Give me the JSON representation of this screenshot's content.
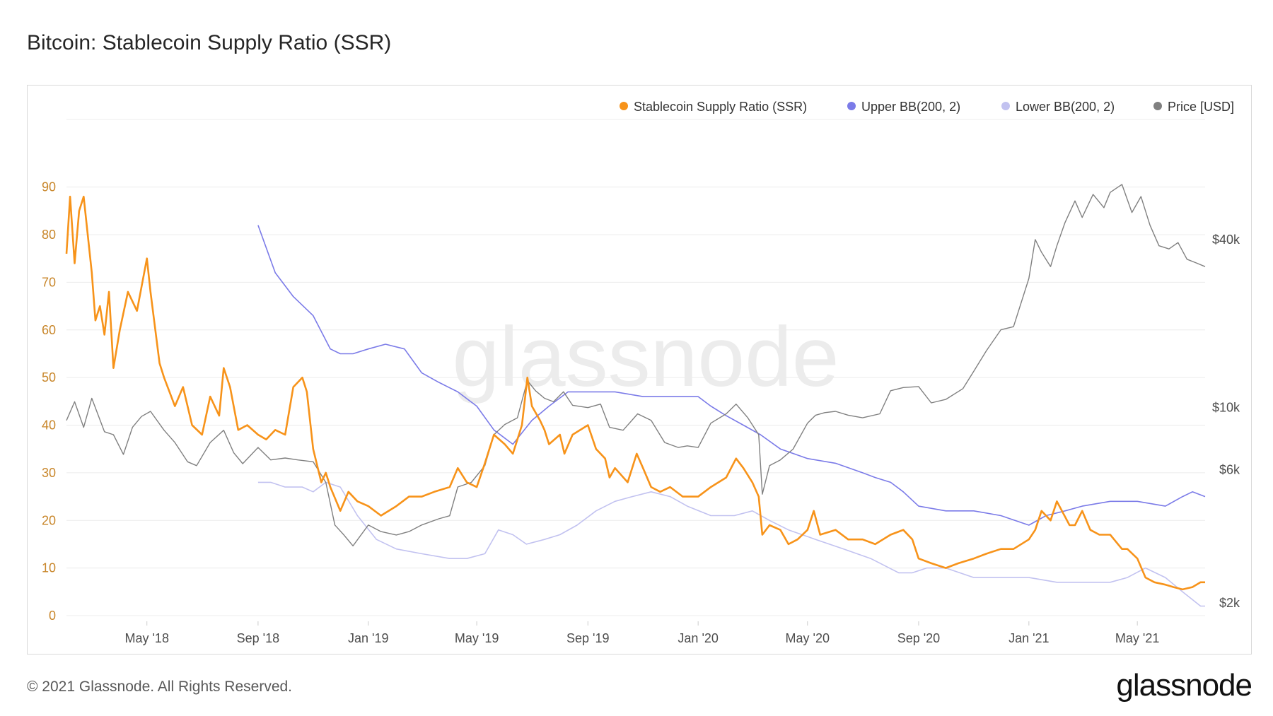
{
  "header": {
    "title": "Bitcoin: Stablecoin Supply Ratio (SSR)"
  },
  "footer": {
    "copyright": "© 2021 Glassnode. All Rights Reserved.",
    "logo": "glassnode"
  },
  "watermark": "glassnode",
  "colors": {
    "ssr": "#f7931a",
    "upper": "#7b7be8",
    "lower": "#c2c2f0",
    "price": "#808080",
    "grid": "#ececec",
    "left_axis": "#c8862a"
  },
  "chart_data": {
    "type": "line",
    "title": "Bitcoin: Stablecoin Supply Ratio (SSR)",
    "legend": {
      "position": "top-right"
    },
    "grid": true,
    "x_ticks": [
      "May '18",
      "Sep '18",
      "Jan '19",
      "May '19",
      "Sep '19",
      "Jan '20",
      "May '20",
      "Sep '20",
      "Jan '21",
      "May '21"
    ],
    "x_tick_dates": [
      "2018-05-01",
      "2018-09-01",
      "2019-01-01",
      "2019-05-01",
      "2019-09-01",
      "2020-01-01",
      "2020-05-01",
      "2020-09-01",
      "2021-01-01",
      "2021-05-01"
    ],
    "xlim": [
      "2018-02-01",
      "2021-07-15"
    ],
    "y_left": {
      "range": [
        0,
        95
      ],
      "ticks": [
        0,
        10,
        20,
        30,
        40,
        50,
        60,
        70,
        80,
        90
      ]
    },
    "y_right": {
      "scale": "log",
      "range": [
        1800,
        75000
      ],
      "ticks": [
        2000,
        6000,
        10000,
        40000
      ],
      "tick_labels": [
        "$2k",
        "$6k",
        "$10k",
        "$40k"
      ]
    },
    "series": [
      {
        "name": "Stablecoin Supply Ratio (SSR)",
        "axis": "left",
        "color": "#f7931a",
        "x": [
          "2018-02-01",
          "2018-02-05",
          "2018-02-10",
          "2018-02-15",
          "2018-02-20",
          "2018-03-01",
          "2018-03-05",
          "2018-03-10",
          "2018-03-15",
          "2018-03-20",
          "2018-03-25",
          "2018-04-01",
          "2018-04-10",
          "2018-04-20",
          "2018-05-01",
          "2018-05-05",
          "2018-05-15",
          "2018-05-20",
          "2018-06-01",
          "2018-06-10",
          "2018-06-20",
          "2018-07-01",
          "2018-07-10",
          "2018-07-20",
          "2018-07-25",
          "2018-08-01",
          "2018-08-10",
          "2018-08-20",
          "2018-09-01",
          "2018-09-10",
          "2018-09-20",
          "2018-10-01",
          "2018-10-10",
          "2018-10-20",
          "2018-10-25",
          "2018-11-01",
          "2018-11-10",
          "2018-11-15",
          "2018-11-20",
          "2018-12-01",
          "2018-12-10",
          "2018-12-20",
          "2019-01-01",
          "2019-01-15",
          "2019-02-01",
          "2019-02-15",
          "2019-03-01",
          "2019-03-15",
          "2019-04-01",
          "2019-04-10",
          "2019-04-20",
          "2019-05-01",
          "2019-05-10",
          "2019-05-20",
          "2019-06-01",
          "2019-06-10",
          "2019-06-20",
          "2019-06-26",
          "2019-07-01",
          "2019-07-10",
          "2019-07-15",
          "2019-07-20",
          "2019-08-01",
          "2019-08-06",
          "2019-08-15",
          "2019-09-01",
          "2019-09-10",
          "2019-09-20",
          "2019-09-25",
          "2019-10-01",
          "2019-10-15",
          "2019-10-25",
          "2019-11-01",
          "2019-11-10",
          "2019-11-20",
          "2019-12-01",
          "2019-12-15",
          "2020-01-01",
          "2020-01-15",
          "2020-02-01",
          "2020-02-12",
          "2020-02-20",
          "2020-03-01",
          "2020-03-08",
          "2020-03-12",
          "2020-03-20",
          "2020-04-01",
          "2020-04-10",
          "2020-04-20",
          "2020-05-01",
          "2020-05-08",
          "2020-05-15",
          "2020-06-01",
          "2020-06-15",
          "2020-07-01",
          "2020-07-15",
          "2020-08-01",
          "2020-08-15",
          "2020-08-25",
          "2020-09-01",
          "2020-09-15",
          "2020-10-01",
          "2020-10-15",
          "2020-11-01",
          "2020-11-15",
          "2020-12-01",
          "2020-12-15",
          "2021-01-01",
          "2021-01-08",
          "2021-01-15",
          "2021-01-25",
          "2021-02-01",
          "2021-02-15",
          "2021-02-21",
          "2021-03-01",
          "2021-03-10",
          "2021-03-20",
          "2021-04-01",
          "2021-04-14",
          "2021-04-20",
          "2021-05-01",
          "2021-05-10",
          "2021-05-20",
          "2021-06-01",
          "2021-06-10",
          "2021-06-20",
          "2021-07-01",
          "2021-07-10",
          "2021-07-15"
        ],
        "values": [
          76,
          88,
          74,
          85,
          88,
          72,
          62,
          65,
          59,
          68,
          52,
          60,
          68,
          64,
          75,
          68,
          53,
          50,
          44,
          48,
          40,
          38,
          46,
          42,
          52,
          48,
          39,
          40,
          38,
          37,
          39,
          38,
          48,
          50,
          47,
          35,
          28,
          30,
          27,
          22,
          26,
          24,
          23,
          21,
          23,
          25,
          25,
          26,
          27,
          31,
          28,
          27,
          32,
          38,
          36,
          34,
          40,
          50,
          44,
          41,
          39,
          36,
          38,
          34,
          38,
          40,
          35,
          33,
          29,
          31,
          28,
          34,
          31,
          27,
          26,
          27,
          25,
          25,
          27,
          29,
          33,
          31,
          28,
          25,
          17,
          19,
          18,
          15,
          16,
          18,
          22,
          17,
          18,
          16,
          16,
          15,
          17,
          18,
          16,
          12,
          11,
          10,
          11,
          12,
          13,
          14,
          14,
          16,
          18,
          22,
          20,
          24,
          19,
          19,
          22,
          18,
          17,
          17,
          14,
          14,
          12,
          8,
          7,
          6.5,
          6,
          5.5,
          6,
          7,
          7
        ],
        "label": ""
      },
      {
        "name": "Upper BB(200, 2)",
        "axis": "left",
        "color": "#7b7be8",
        "x": [
          "2018-09-01",
          "2018-09-20",
          "2018-10-10",
          "2018-11-01",
          "2018-11-20",
          "2018-12-01",
          "2018-12-15",
          "2019-01-01",
          "2019-01-20",
          "2019-02-10",
          "2019-03-01",
          "2019-03-20",
          "2019-04-10",
          "2019-05-01",
          "2019-05-20",
          "2019-06-10",
          "2019-07-01",
          "2019-07-20",
          "2019-08-10",
          "2019-09-01",
          "2019-10-01",
          "2019-11-01",
          "2019-12-01",
          "2020-01-01",
          "2020-01-15",
          "2020-02-01",
          "2020-02-20",
          "2020-03-10",
          "2020-04-01",
          "2020-05-01",
          "2020-06-01",
          "2020-07-01",
          "2020-07-15",
          "2020-08-01",
          "2020-08-15",
          "2020-09-01",
          "2020-10-01",
          "2020-11-01",
          "2020-12-01",
          "2021-01-01",
          "2021-01-20",
          "2021-02-10",
          "2021-03-01",
          "2021-04-01",
          "2021-05-01",
          "2021-06-01",
          "2021-06-20",
          "2021-07-01",
          "2021-07-15"
        ],
        "values": [
          82,
          72,
          67,
          63,
          56,
          55,
          55,
          56,
          57,
          56,
          51,
          49,
          47,
          44,
          39,
          36,
          41,
          44,
          47,
          47,
          47,
          46,
          46,
          46,
          44,
          42,
          40,
          38,
          35,
          33,
          32,
          30,
          29,
          28,
          26,
          23,
          22,
          22,
          21,
          19,
          21,
          22,
          23,
          24,
          24,
          23,
          25,
          26,
          25
        ]
      },
      {
        "name": "Lower BB(200, 2)",
        "axis": "left",
        "color": "#c2c2f0",
        "x": [
          "2018-09-01",
          "2018-09-15",
          "2018-10-01",
          "2018-10-20",
          "2018-11-01",
          "2018-11-15",
          "2018-12-01",
          "2018-12-20",
          "2019-01-10",
          "2019-02-01",
          "2019-03-01",
          "2019-04-01",
          "2019-04-20",
          "2019-05-10",
          "2019-05-25",
          "2019-06-10",
          "2019-06-25",
          "2019-07-15",
          "2019-08-01",
          "2019-08-20",
          "2019-09-10",
          "2019-10-01",
          "2019-10-20",
          "2019-11-10",
          "2019-12-01",
          "2019-12-20",
          "2020-01-15",
          "2020-02-10",
          "2020-03-01",
          "2020-03-20",
          "2020-04-10",
          "2020-05-10",
          "2020-06-10",
          "2020-07-10",
          "2020-08-10",
          "2020-08-25",
          "2020-09-10",
          "2020-10-01",
          "2020-11-01",
          "2020-12-01",
          "2021-01-01",
          "2021-02-01",
          "2021-03-01",
          "2021-04-01",
          "2021-04-20",
          "2021-05-10",
          "2021-06-01",
          "2021-06-20",
          "2021-07-10",
          "2021-07-15"
        ],
        "values": [
          28,
          28,
          27,
          27,
          26,
          28,
          27,
          21,
          16,
          14,
          13,
          12,
          12,
          13,
          18,
          17,
          15,
          16,
          17,
          19,
          22,
          24,
          25,
          26,
          25,
          23,
          21,
          21,
          22,
          20,
          18,
          16,
          14,
          12,
          9,
          9,
          10,
          10,
          8,
          8,
          8,
          7,
          7,
          7,
          8,
          10,
          8,
          5,
          2,
          2
        ]
      },
      {
        "name": "Price [USD]",
        "axis": "right",
        "color": "#808080",
        "x": [
          "2018-02-01",
          "2018-02-10",
          "2018-02-20",
          "2018-03-01",
          "2018-03-15",
          "2018-03-25",
          "2018-04-05",
          "2018-04-15",
          "2018-04-25",
          "2018-05-05",
          "2018-05-20",
          "2018-06-01",
          "2018-06-15",
          "2018-06-25",
          "2018-07-10",
          "2018-07-25",
          "2018-08-05",
          "2018-08-15",
          "2018-09-01",
          "2018-09-15",
          "2018-10-01",
          "2018-10-15",
          "2018-11-01",
          "2018-11-15",
          "2018-11-25",
          "2018-12-05",
          "2018-12-15",
          "2019-01-01",
          "2019-01-15",
          "2019-02-01",
          "2019-02-15",
          "2019-03-01",
          "2019-03-20",
          "2019-04-01",
          "2019-04-10",
          "2019-04-25",
          "2019-05-10",
          "2019-05-20",
          "2019-06-01",
          "2019-06-15",
          "2019-06-26",
          "2019-07-05",
          "2019-07-15",
          "2019-07-25",
          "2019-08-05",
          "2019-08-15",
          "2019-09-01",
          "2019-09-15",
          "2019-09-25",
          "2019-10-10",
          "2019-10-26",
          "2019-11-10",
          "2019-11-25",
          "2019-12-10",
          "2019-12-20",
          "2020-01-01",
          "2020-01-15",
          "2020-02-01",
          "2020-02-12",
          "2020-02-25",
          "2020-03-08",
          "2020-03-12",
          "2020-03-20",
          "2020-04-01",
          "2020-04-15",
          "2020-05-01",
          "2020-05-10",
          "2020-05-20",
          "2020-06-01",
          "2020-06-15",
          "2020-07-01",
          "2020-07-20",
          "2020-08-01",
          "2020-08-15",
          "2020-09-01",
          "2020-09-15",
          "2020-10-01",
          "2020-10-20",
          "2020-11-01",
          "2020-11-15",
          "2020-12-01",
          "2020-12-15",
          "2021-01-01",
          "2021-01-08",
          "2021-01-15",
          "2021-01-25",
          "2021-02-01",
          "2021-02-10",
          "2021-02-21",
          "2021-03-01",
          "2021-03-13",
          "2021-03-25",
          "2021-04-01",
          "2021-04-14",
          "2021-04-25",
          "2021-05-05",
          "2021-05-15",
          "2021-05-25",
          "2021-06-05",
          "2021-06-15",
          "2021-06-25",
          "2021-07-05",
          "2021-07-15"
        ],
        "values": [
          9000,
          10500,
          8500,
          10800,
          8200,
          8000,
          6800,
          8500,
          9300,
          9700,
          8300,
          7500,
          6400,
          6200,
          7500,
          8300,
          6900,
          6300,
          7200,
          6500,
          6600,
          6500,
          6400,
          5400,
          3800,
          3500,
          3200,
          3800,
          3600,
          3500,
          3600,
          3800,
          4000,
          4100,
          5200,
          5400,
          6200,
          8000,
          8700,
          9200,
          12500,
          11500,
          10800,
          10500,
          11400,
          10200,
          10000,
          10300,
          8500,
          8300,
          9500,
          9000,
          7500,
          7200,
          7300,
          7200,
          8800,
          9500,
          10300,
          9200,
          8000,
          4900,
          6200,
          6500,
          7100,
          8800,
          9400,
          9600,
          9700,
          9400,
          9200,
          9500,
          11500,
          11800,
          11900,
          10400,
          10700,
          11700,
          13500,
          16000,
          19000,
          19500,
          29000,
          40000,
          36000,
          32000,
          38000,
          46000,
          55000,
          48000,
          58000,
          52000,
          59000,
          63000,
          50000,
          57000,
          45000,
          38000,
          37000,
          39000,
          34000,
          33000,
          32000
        ]
      }
    ]
  }
}
